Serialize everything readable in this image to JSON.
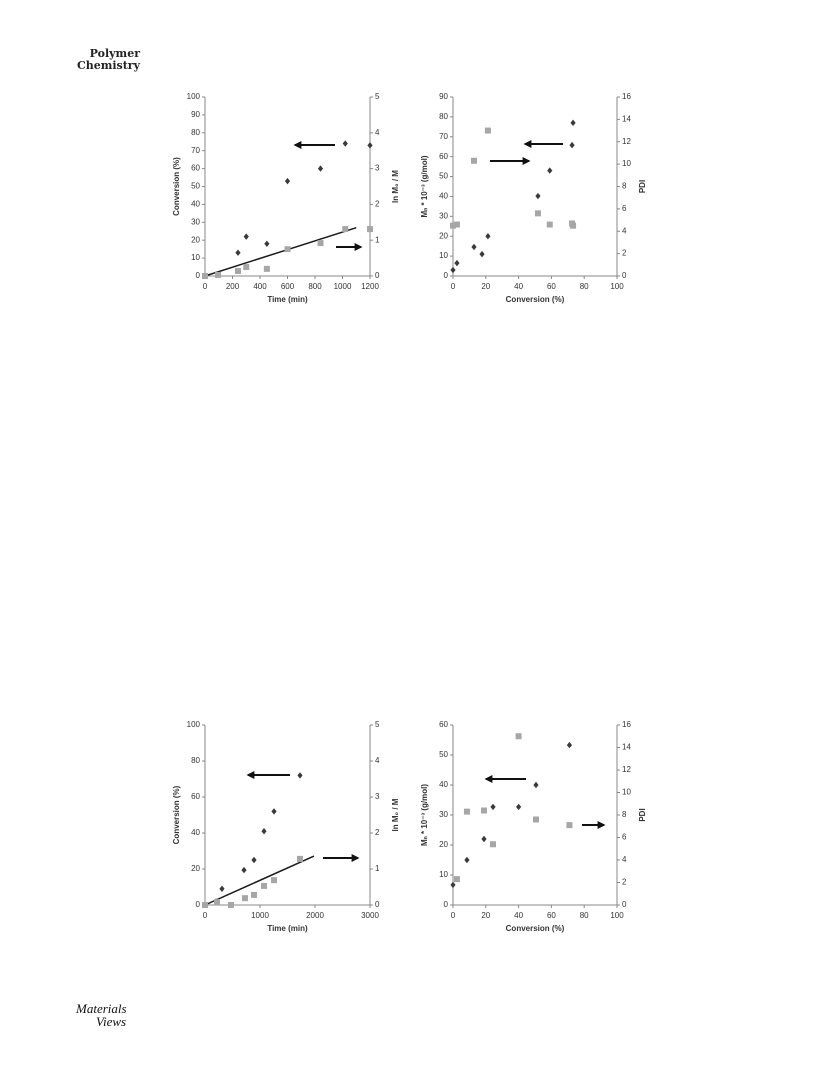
{
  "header": {
    "journal_line1": "Polymer",
    "journal_line2": "Chemistry"
  },
  "footer": {
    "logo_line1": "Materials",
    "logo_line2": "Views"
  },
  "chart_data": [
    {
      "type": "scatter",
      "xlabel": "Time (min)",
      "ylabel": "Conversion (%)",
      "y2label": "ln M₀ / M",
      "xlim": [
        0,
        1200
      ],
      "xticks": [
        0,
        200,
        400,
        600,
        800,
        1000,
        1200
      ],
      "ylim": [
        0,
        100
      ],
      "yticks": [
        0,
        10,
        20,
        30,
        40,
        50,
        60,
        70,
        80,
        90,
        100
      ],
      "y2lim": [
        0,
        5
      ],
      "y2ticks": [
        0,
        1,
        2,
        3,
        4,
        5
      ],
      "series": [
        {
          "color": "#3a3a3a",
          "marker": "diamond",
          "x": [
            0,
            240,
            300,
            450,
            600,
            840,
            1020,
            1200
          ],
          "values": [
            0,
            13,
            22,
            18,
            53,
            60,
            74,
            73
          ]
        },
        {
          "color": "#a6a6a6",
          "marker": "square",
          "axis": "y2",
          "x": [
            0,
            95,
            240,
            300,
            450,
            600,
            840,
            1020,
            1200
          ],
          "values": [
            0,
            0.03,
            0.14,
            0.25,
            0.2,
            0.75,
            0.92,
            1.31,
            1.31
          ]
        }
      ],
      "trend_line": {
        "color": "#1a1a1a",
        "axis": "y2",
        "x": [
          0,
          1100
        ],
        "values": [
          0,
          1.35
        ]
      }
    },
    {
      "type": "scatter",
      "xlabel": "Conversion (%)",
      "ylabel": "Mₙ * 10⁻³ (g/mol)",
      "y2label": "PDI",
      "xlim": [
        0,
        100
      ],
      "xticks": [
        0,
        20,
        40,
        60,
        80,
        100
      ],
      "ylim": [
        0,
        90
      ],
      "yticks": [
        0,
        10,
        20,
        30,
        40,
        50,
        60,
        70,
        80,
        90
      ],
      "y2lim": [
        0,
        16
      ],
      "y2ticks": [
        0,
        2,
        4,
        6,
        8,
        10,
        12,
        14,
        16
      ],
      "series": [
        {
          "color": "#3a3a3a",
          "marker": "diamond",
          "x": [
            0,
            2.4,
            12.8,
            17.7,
            21.3,
            51.8,
            59,
            72.6,
            73.2
          ],
          "values": [
            3,
            6.5,
            14.6,
            11,
            20,
            40.2,
            53,
            65.8,
            77
          ]
        },
        {
          "color": "#a6a6a6",
          "marker": "square",
          "axis": "y2",
          "x": [
            0,
            2.4,
            12.8,
            21.3,
            51.8,
            59,
            72.6,
            73.2
          ],
          "values": [
            4.5,
            4.6,
            10.3,
            13,
            5.6,
            4.6,
            4.7,
            4.5
          ]
        }
      ]
    },
    {
      "type": "scatter",
      "xlabel": "Time (min)",
      "ylabel": "Conversion (%)",
      "y2label": "ln M₀ / M",
      "xlim": [
        0,
        3000
      ],
      "xticks": [
        0,
        1000,
        2000,
        3000
      ],
      "ylim": [
        0,
        100
      ],
      "yticks": [
        0,
        20,
        40,
        60,
        80,
        100
      ],
      "y2lim": [
        0,
        5
      ],
      "y2ticks": [
        0,
        1,
        2,
        3,
        4,
        5
      ],
      "series": [
        {
          "color": "#3a3a3a",
          "marker": "diamond",
          "x": [
            200,
            309,
            709,
            891,
            1073,
            1255,
            1727
          ],
          "values": [
            2,
            9,
            19.4,
            25,
            41,
            52,
            72
          ]
        },
        {
          "color": "#a6a6a6",
          "marker": "square",
          "axis": "y2",
          "x": [
            0,
            218,
            473,
            727,
            891,
            1073,
            1255,
            1727
          ],
          "values": [
            0,
            0.08,
            0,
            0.19,
            0.28,
            0.53,
            0.69,
            1.28
          ]
        }
      ],
      "trend_line": {
        "color": "#1a1a1a",
        "axis": "y2",
        "x": [
          0,
          1982
        ],
        "values": [
          0,
          1.36
        ]
      }
    },
    {
      "type": "scatter",
      "xlabel": "Conversion (%)",
      "ylabel": "Mₙ * 10⁻³ (g/mol)",
      "y2label": "PDI",
      "xlim": [
        0,
        100
      ],
      "xticks": [
        0,
        20,
        40,
        60,
        80,
        100
      ],
      "ylim": [
        0,
        60
      ],
      "yticks": [
        0,
        10,
        20,
        30,
        40,
        50,
        60
      ],
      "y2lim": [
        0,
        16
      ],
      "y2ticks": [
        0,
        2,
        4,
        6,
        8,
        10,
        12,
        14,
        16
      ],
      "series": [
        {
          "color": "#3a3a3a",
          "marker": "diamond",
          "x": [
            0,
            8.5,
            18.9,
            24.4,
            40,
            50.6,
            71
          ],
          "values": [
            6.7,
            15,
            22,
            32.7,
            32.7,
            40,
            53.3
          ]
        },
        {
          "color": "#a6a6a6",
          "marker": "square",
          "axis": "y2",
          "x": [
            2.4,
            8.5,
            18.9,
            24.4,
            40,
            50.6,
            71
          ],
          "values": [
            2.3,
            8.3,
            8.4,
            5.4,
            15,
            7.6,
            7.1
          ]
        }
      ]
    }
  ]
}
